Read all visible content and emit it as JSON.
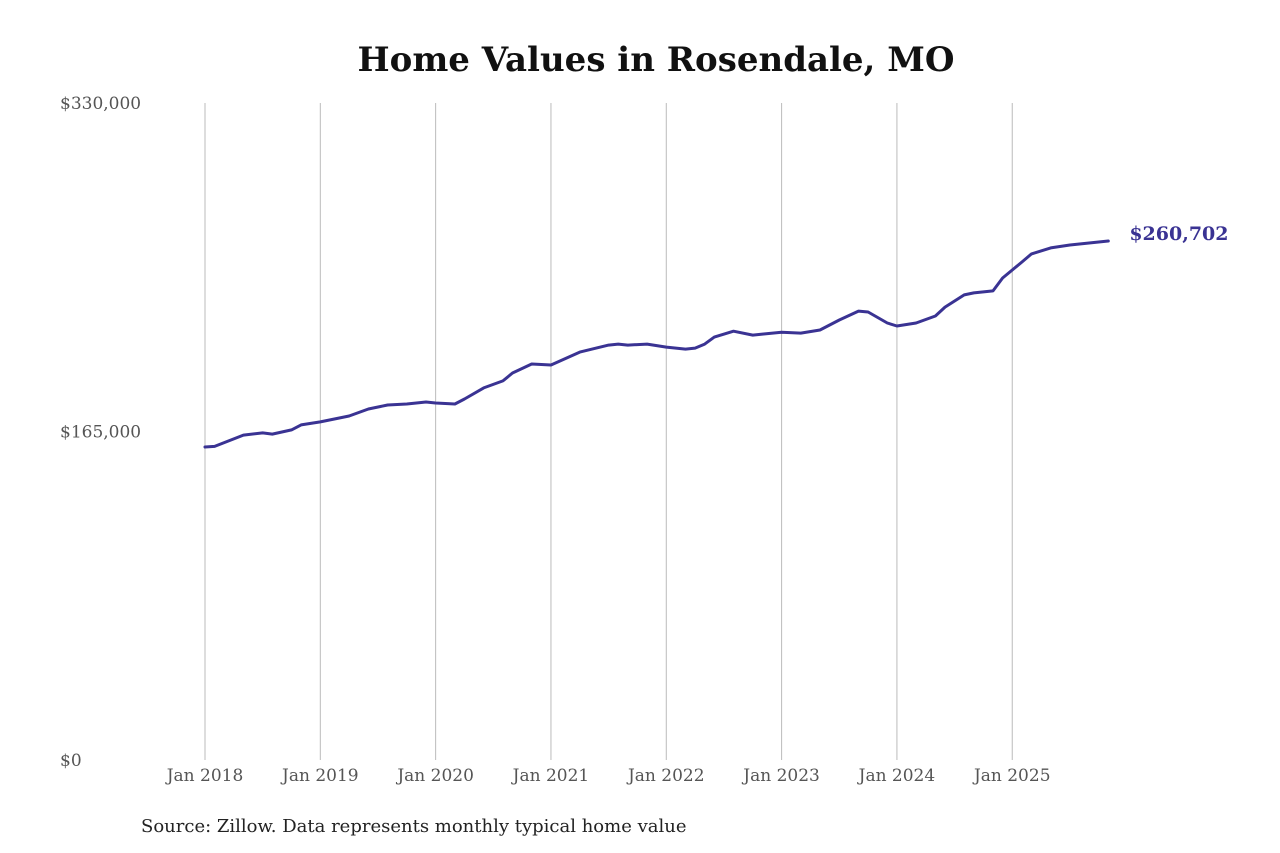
{
  "chart_data": {
    "type": "line",
    "title": "Home Values in Rosendale, MO",
    "source": "Source: Zillow. Data represents monthly typical home value",
    "xlabel": "",
    "ylabel": "",
    "ylim": [
      0,
      330000
    ],
    "y_ticks": [
      "$0",
      "$165,000",
      "$330,000"
    ],
    "y_tick_values": [
      0,
      165000,
      330000
    ],
    "x_ticks": [
      "Jan 2018",
      "Jan 2019",
      "Jan 2020",
      "Jan 2021",
      "Jan 2022",
      "Jan 2023",
      "Jan 2024",
      "Jan 2025"
    ],
    "x_tick_values": [
      "2018-01",
      "2019-01",
      "2020-01",
      "2021-01",
      "2022-01",
      "2023-01",
      "2024-01",
      "2025-01"
    ],
    "grid": "vertical",
    "line_color": "#3a3393",
    "end_label": "$260,702",
    "series": [
      {
        "x": [
          "2018-01",
          "2018-02",
          "2018-05",
          "2018-07",
          "2018-08",
          "2018-10",
          "2018-11",
          "2019-01",
          "2019-04",
          "2019-06",
          "2019-08",
          "2019-10",
          "2019-12",
          "2020-01",
          "2020-03",
          "2020-04",
          "2020-06",
          "2020-08",
          "2020-09",
          "2020-11",
          "2021-01",
          "2021-04",
          "2021-07",
          "2021-08",
          "2021-09",
          "2021-11",
          "2022-01",
          "2022-03",
          "2022-04",
          "2022-05",
          "2022-06",
          "2022-08",
          "2022-10",
          "2022-11",
          "2023-01",
          "2023-03",
          "2023-05",
          "2023-07",
          "2023-09",
          "2023-10",
          "2023-12",
          "2024-01",
          "2024-03",
          "2024-05",
          "2024-06",
          "2024-08",
          "2024-09",
          "2024-11",
          "2024-12",
          "2025-02",
          "2025-03",
          "2025-05",
          "2025-07",
          "2025-08",
          "2025-09",
          "2025-11"
        ],
        "values": [
          157200,
          157500,
          163200,
          164300,
          163700,
          165800,
          168300,
          169800,
          172800,
          176300,
          178300,
          178800,
          179800,
          179300,
          178800,
          181300,
          186900,
          190400,
          194400,
          198900,
          198400,
          204900,
          208400,
          208900,
          208400,
          208900,
          207400,
          206400,
          206900,
          208900,
          212400,
          215400,
          213400,
          213900,
          214900,
          214400,
          216000,
          221000,
          225500,
          225000,
          219500,
          218000,
          219500,
          223000,
          227500,
          233600,
          234600,
          235600,
          242100,
          250100,
          254200,
          257200,
          258700,
          259200,
          259700,
          260702
        ]
      }
    ]
  }
}
